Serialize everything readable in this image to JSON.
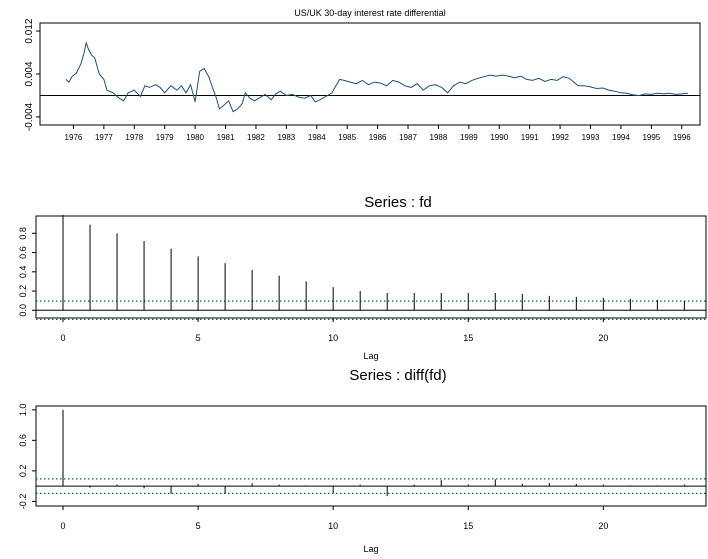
{
  "chart_data": [
    {
      "type": "line",
      "title": "US/UK 30-day interest rate differential",
      "xlabel": "",
      "ylabel": "",
      "x_ticks": [
        "1976",
        "1977",
        "1978",
        "1979",
        "1980",
        "1981",
        "1982",
        "1983",
        "1984",
        "1985",
        "1986",
        "1987",
        "1988",
        "1989",
        "1990",
        "1991",
        "1992",
        "1993",
        "1994",
        "1995",
        "1996"
      ],
      "y_ticks": [
        "-0.004",
        "0.004",
        "0.012"
      ],
      "xlim": [
        1975.4,
        1997.1
      ],
      "ylim": [
        -0.0055,
        0.0135
      ],
      "reference_line": 0.0,
      "line_color": "#1f4e79",
      "series": [
        {
          "points": [
            [
              1976.25,
              0.003
            ],
            [
              1976.35,
              0.0025
            ],
            [
              1976.45,
              0.0035
            ],
            [
              1976.6,
              0.0042
            ],
            [
              1976.75,
              0.006
            ],
            [
              1976.85,
              0.008
            ],
            [
              1976.92,
              0.0098
            ],
            [
              1977.0,
              0.0085
            ],
            [
              1977.1,
              0.0075
            ],
            [
              1977.2,
              0.007
            ],
            [
              1977.35,
              0.004
            ],
            [
              1977.5,
              0.003
            ],
            [
              1977.6,
              0.001
            ],
            [
              1977.8,
              0.0005
            ],
            [
              1978.0,
              -0.0005
            ],
            [
              1978.15,
              -0.001
            ],
            [
              1978.3,
              0.0005
            ],
            [
              1978.5,
              0.001
            ],
            [
              1978.7,
              -0.0002
            ],
            [
              1978.85,
              0.0018
            ],
            [
              1979.0,
              0.0015
            ],
            [
              1979.2,
              0.002
            ],
            [
              1979.35,
              0.0015
            ],
            [
              1979.5,
              0.0005
            ],
            [
              1979.7,
              0.0018
            ],
            [
              1979.9,
              0.001
            ],
            [
              1980.05,
              0.0018
            ],
            [
              1980.2,
              0.0005
            ],
            [
              1980.35,
              0.002
            ],
            [
              1980.5,
              -0.0012
            ],
            [
              1980.65,
              0.0045
            ],
            [
              1980.8,
              0.005
            ],
            [
              1980.95,
              0.0035
            ],
            [
              1981.1,
              0.001
            ],
            [
              1981.2,
              -0.0005
            ],
            [
              1981.3,
              -0.0025
            ],
            [
              1981.45,
              -0.0018
            ],
            [
              1981.6,
              -0.001
            ],
            [
              1981.75,
              -0.003
            ],
            [
              1981.9,
              -0.0025
            ],
            [
              1982.05,
              -0.0015
            ],
            [
              1982.15,
              0.0005
            ],
            [
              1982.3,
              -0.0005
            ],
            [
              1982.45,
              -0.001
            ],
            [
              1982.6,
              -0.0005
            ],
            [
              1982.8,
              0.0002
            ],
            [
              1983.0,
              -0.0008
            ],
            [
              1983.15,
              0.0003
            ],
            [
              1983.3,
              0.0008
            ],
            [
              1983.5,
              0.0
            ],
            [
              1983.7,
              0.0002
            ],
            [
              1983.9,
              -0.0003
            ],
            [
              1984.1,
              -0.0005
            ],
            [
              1984.3,
              0.0
            ],
            [
              1984.45,
              -0.0012
            ],
            [
              1984.6,
              -0.0008
            ],
            [
              1984.8,
              -0.0002
            ],
            [
              1985.0,
              0.0005
            ],
            [
              1985.1,
              0.0015
            ],
            [
              1985.25,
              0.003
            ],
            [
              1985.4,
              0.0028
            ],
            [
              1985.6,
              0.0025
            ],
            [
              1985.8,
              0.0022
            ],
            [
              1986.0,
              0.0028
            ],
            [
              1986.2,
              0.002
            ],
            [
              1986.4,
              0.0025
            ],
            [
              1986.6,
              0.0023
            ],
            [
              1986.8,
              0.0018
            ],
            [
              1987.0,
              0.0028
            ],
            [
              1987.2,
              0.0025
            ],
            [
              1987.4,
              0.0018
            ],
            [
              1987.6,
              0.0015
            ],
            [
              1987.8,
              0.0022
            ],
            [
              1988.0,
              0.001
            ],
            [
              1988.2,
              0.0018
            ],
            [
              1988.4,
              0.002
            ],
            [
              1988.6,
              0.0015
            ],
            [
              1988.8,
              0.0005
            ],
            [
              1989.0,
              0.0018
            ],
            [
              1989.2,
              0.0025
            ],
            [
              1989.4,
              0.0022
            ],
            [
              1989.6,
              0.0028
            ],
            [
              1989.8,
              0.0032
            ],
            [
              1990.0,
              0.0035
            ],
            [
              1990.2,
              0.0038
            ],
            [
              1990.4,
              0.0036
            ],
            [
              1990.6,
              0.0038
            ],
            [
              1990.8,
              0.0036
            ],
            [
              1991.0,
              0.0033
            ],
            [
              1991.2,
              0.0036
            ],
            [
              1991.4,
              0.003
            ],
            [
              1991.6,
              0.0028
            ],
            [
              1991.8,
              0.0032
            ],
            [
              1992.0,
              0.0026
            ],
            [
              1992.2,
              0.003
            ],
            [
              1992.4,
              0.0028
            ],
            [
              1992.6,
              0.0035
            ],
            [
              1992.8,
              0.0032
            ],
            [
              1992.95,
              0.0025
            ],
            [
              1993.1,
              0.0018
            ],
            [
              1993.3,
              0.0018
            ],
            [
              1993.5,
              0.0016
            ],
            [
              1993.7,
              0.0013
            ],
            [
              1993.9,
              0.0014
            ],
            [
              1994.1,
              0.001
            ],
            [
              1994.3,
              0.0008
            ],
            [
              1994.5,
              0.0005
            ],
            [
              1994.7,
              0.0004
            ],
            [
              1994.9,
              0.0001
            ],
            [
              1995.1,
              0.0
            ],
            [
              1995.3,
              0.0003
            ],
            [
              1995.5,
              0.0002
            ],
            [
              1995.7,
              0.0004
            ],
            [
              1995.9,
              0.0003
            ],
            [
              1996.1,
              0.0004
            ],
            [
              1996.3,
              0.0002
            ],
            [
              1996.5,
              0.0003
            ],
            [
              1996.7,
              0.0004
            ]
          ]
        }
      ]
    },
    {
      "type": "bar",
      "title": "Series : fd",
      "xlabel": "Lag",
      "ylabel": "",
      "x_ticks": [
        "0",
        "5",
        "10",
        "15",
        "20"
      ],
      "y_ticks": [
        "0.0",
        "0.2",
        "0.4",
        "0.6",
        "0.8"
      ],
      "xlim": [
        -1.0,
        23.8
      ],
      "ylim": [
        -0.08,
        0.98
      ],
      "conf_band": 0.095,
      "band_color": "#1f4e79",
      "lags": [
        0,
        1,
        2,
        3,
        4,
        5,
        6,
        7,
        8,
        9,
        10,
        11,
        12,
        13,
        14,
        15,
        16,
        17,
        18,
        19,
        20,
        21,
        22,
        23
      ],
      "values": [
        0.99,
        0.89,
        0.8,
        0.72,
        0.64,
        0.56,
        0.49,
        0.42,
        0.36,
        0.3,
        0.24,
        0.2,
        0.18,
        0.18,
        0.18,
        0.18,
        0.18,
        0.17,
        0.15,
        0.14,
        0.13,
        0.12,
        0.11,
        0.1
      ]
    },
    {
      "type": "bar",
      "title": "Series : diff(fd)",
      "xlabel": "Lag",
      "ylabel": "",
      "x_ticks": [
        "0",
        "5",
        "10",
        "15",
        "20"
      ],
      "y_ticks": [
        "-0.2",
        "0.2",
        "0.6",
        "1.0"
      ],
      "xlim": [
        -1.0,
        23.8
      ],
      "ylim": [
        -0.26,
        1.05
      ],
      "conf_band": 0.095,
      "band_color": "#1f4e79",
      "lags": [
        0,
        1,
        2,
        3,
        4,
        5,
        6,
        7,
        8,
        9,
        10,
        11,
        12,
        13,
        14,
        15,
        16,
        17,
        18,
        19,
        20,
        21,
        22,
        23
      ],
      "values": [
        1.0,
        -0.02,
        0.02,
        -0.03,
        -0.1,
        0.03,
        -0.1,
        0.04,
        0.02,
        0.01,
        -0.09,
        0.02,
        -0.13,
        0.02,
        0.08,
        0.02,
        0.09,
        0.03,
        0.04,
        0.03,
        0.02,
        0.01,
        0.01,
        0.02
      ]
    }
  ]
}
